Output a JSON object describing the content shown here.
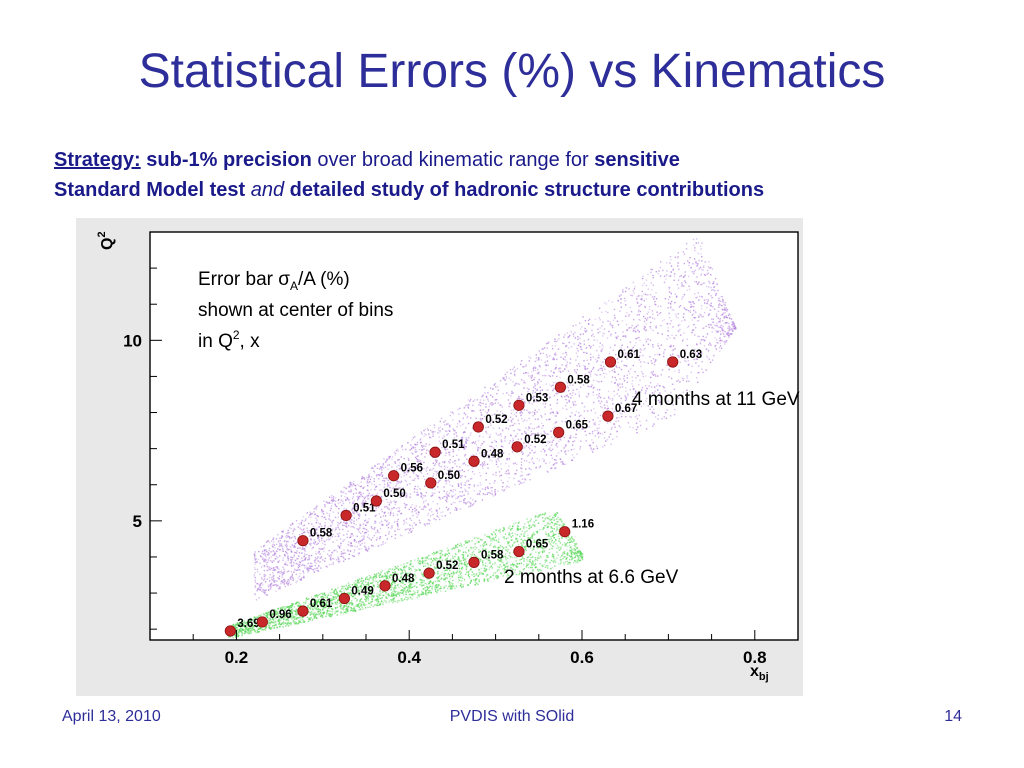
{
  "slide": {
    "title": "Statistical Errors (%) vs Kinematics",
    "strategy": {
      "label": "Strategy:",
      "part1": "sub-1% precision",
      "part2": " over broad kinematic range for ",
      "part3": "sensitive",
      "part4": "Standard Model test ",
      "part5": "and",
      "part6": " detailed study of hadronic structure contributions"
    },
    "footer": {
      "date": "April 13, 2010",
      "center": "PVDIS with SOlid",
      "page": "14"
    }
  },
  "chart_data": {
    "type": "scatter",
    "xlabel_main": "x",
    "xlabel_sub": "bj",
    "ylabel_main": "Q",
    "ylabel_sup": "2",
    "xlim": [
      0.1,
      0.85
    ],
    "ylim": [
      1.7,
      13
    ],
    "xticks": [
      {
        "v": 0.2,
        "label": "0.2"
      },
      {
        "v": 0.4,
        "label": "0.4"
      },
      {
        "v": 0.6,
        "label": "0.6"
      },
      {
        "v": 0.8,
        "label": "0.8"
      }
    ],
    "yticks": [
      {
        "v": 5,
        "label": "5"
      },
      {
        "v": 10,
        "label": "10"
      }
    ],
    "annotation": {
      "line1_a": "Error bar σ",
      "line1_sub": "A",
      "line1_b": "/A (%)",
      "line2": "shown at center of bins",
      "line3_a": "in Q",
      "line3_sup": "2",
      "line3_b": ", x"
    },
    "series": [
      {
        "label": "4 months at 11 GeV",
        "band_color": "#b88ae0",
        "points": [
          {
            "x": 0.277,
            "y": 4.45,
            "label": "0.58"
          },
          {
            "x": 0.327,
            "y": 5.15,
            "label": "0.51"
          },
          {
            "x": 0.362,
            "y": 5.55,
            "label": "0.50"
          },
          {
            "x": 0.382,
            "y": 6.25,
            "label": "0.56"
          },
          {
            "x": 0.425,
            "y": 6.05,
            "label": "0.50"
          },
          {
            "x": 0.43,
            "y": 6.9,
            "label": "0.51"
          },
          {
            "x": 0.475,
            "y": 6.65,
            "label": "0.48"
          },
          {
            "x": 0.48,
            "y": 7.6,
            "label": "0.52"
          },
          {
            "x": 0.525,
            "y": 7.05,
            "label": "0.52"
          },
          {
            "x": 0.527,
            "y": 8.2,
            "label": "0.53"
          },
          {
            "x": 0.573,
            "y": 7.45,
            "label": "0.65"
          },
          {
            "x": 0.575,
            "y": 8.7,
            "label": "0.58"
          },
          {
            "x": 0.63,
            "y": 7.9,
            "label": "0.67"
          },
          {
            "x": 0.633,
            "y": 9.4,
            "label": "0.61"
          },
          {
            "x": 0.705,
            "y": 9.4,
            "label": "0.63"
          }
        ]
      },
      {
        "label": "2 months at 6.6 GeV",
        "band_color": "#5ed85e",
        "points": [
          {
            "x": 0.193,
            "y": 1.95,
            "label": "3.69"
          },
          {
            "x": 0.23,
            "y": 2.2,
            "label": "0.96"
          },
          {
            "x": 0.277,
            "y": 2.5,
            "label": "0.61"
          },
          {
            "x": 0.325,
            "y": 2.85,
            "label": "0.49"
          },
          {
            "x": 0.372,
            "y": 3.2,
            "label": "0.48"
          },
          {
            "x": 0.423,
            "y": 3.55,
            "label": "0.52"
          },
          {
            "x": 0.475,
            "y": 3.85,
            "label": "0.58"
          },
          {
            "x": 0.527,
            "y": 4.15,
            "label": "0.65"
          },
          {
            "x": 0.58,
            "y": 4.7,
            "label": "1.16"
          }
        ]
      }
    ]
  }
}
